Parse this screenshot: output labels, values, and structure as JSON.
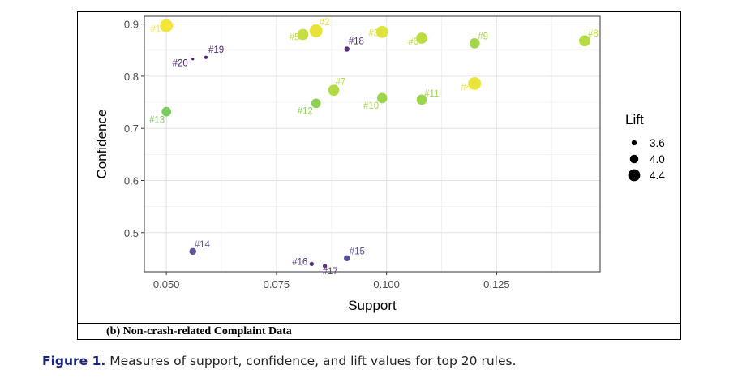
{
  "subcaption": "(b) Non-crash-related Complaint Data",
  "caption": {
    "label": "Figure 1.",
    "text": "Measures of support, confidence, and lift values for top 20 rules."
  },
  "chart_data": {
    "type": "scatter",
    "title": "",
    "xlabel": "Support",
    "ylabel": "Confidence",
    "xlim": [
      0.045,
      0.1485
    ],
    "ylim": [
      0.425,
      0.915
    ],
    "xticks": [
      0.05,
      0.075,
      0.1,
      0.125
    ],
    "xtick_labels": [
      "0.050",
      "0.075",
      "0.100",
      "0.125"
    ],
    "yticks": [
      0.5,
      0.6,
      0.7,
      0.8,
      0.9
    ],
    "ytick_labels": [
      "0.5",
      "0.6",
      "0.7",
      "0.8",
      "0.9"
    ],
    "grid": true,
    "size_legend": {
      "title": "Lift",
      "values": [
        3.6,
        4.0,
        4.4
      ],
      "labels": [
        "3.6",
        "4.0",
        "4.4"
      ],
      "placement": "right"
    },
    "color_scale": "viridis (by lift)",
    "points": [
      {
        "label": "#1",
        "x": 0.05,
        "y": 0.897,
        "lift": 4.6,
        "color": "#f4e53a"
      },
      {
        "label": "#2",
        "x": 0.084,
        "y": 0.887,
        "lift": 4.6,
        "color": "#e8e33a"
      },
      {
        "label": "#3",
        "x": 0.099,
        "y": 0.885,
        "lift": 4.5,
        "color": "#dde33c"
      },
      {
        "label": "#4",
        "x": 0.12,
        "y": 0.786,
        "lift": 4.6,
        "color": "#e9e43b"
      },
      {
        "label": "#5",
        "x": 0.081,
        "y": 0.88,
        "lift": 4.4,
        "color": "#c6df3e"
      },
      {
        "label": "#6",
        "x": 0.108,
        "y": 0.873,
        "lift": 4.4,
        "color": "#bcdc40"
      },
      {
        "label": "#7",
        "x": 0.088,
        "y": 0.773,
        "lift": 4.4,
        "color": "#b0db44"
      },
      {
        "label": "#8",
        "x": 0.145,
        "y": 0.868,
        "lift": 4.4,
        "color": "#b5dc42"
      },
      {
        "label": "#9",
        "x": 0.12,
        "y": 0.863,
        "lift": 4.3,
        "color": "#a4d64c"
      },
      {
        "label": "#10",
        "x": 0.099,
        "y": 0.758,
        "lift": 4.3,
        "color": "#9ed54c"
      },
      {
        "label": "#11",
        "x": 0.108,
        "y": 0.755,
        "lift": 4.3,
        "color": "#9cd44d"
      },
      {
        "label": "#12",
        "x": 0.084,
        "y": 0.748,
        "lift": 4.2,
        "color": "#8ecf55"
      },
      {
        "label": "#13",
        "x": 0.05,
        "y": 0.732,
        "lift": 4.2,
        "color": "#7bcc5e"
      },
      {
        "label": "#14",
        "x": 0.056,
        "y": 0.464,
        "lift": 3.9,
        "color": "#5a5a97"
      },
      {
        "label": "#15",
        "x": 0.091,
        "y": 0.451,
        "lift": 3.8,
        "color": "#55509a"
      },
      {
        "label": "#16",
        "x": 0.083,
        "y": 0.44,
        "lift": 3.6,
        "color": "#58357e"
      },
      {
        "label": "#17",
        "x": 0.086,
        "y": 0.436,
        "lift": 3.6,
        "color": "#5c3680"
      },
      {
        "label": "#18",
        "x": 0.091,
        "y": 0.852,
        "lift": 3.7,
        "color": "#5a2d7a"
      },
      {
        "label": "#19",
        "x": 0.059,
        "y": 0.836,
        "lift": 3.5,
        "color": "#4f2473"
      },
      {
        "label": "#20",
        "x": 0.056,
        "y": 0.833,
        "lift": 3.4,
        "color": "#4a1f6d"
      }
    ]
  }
}
